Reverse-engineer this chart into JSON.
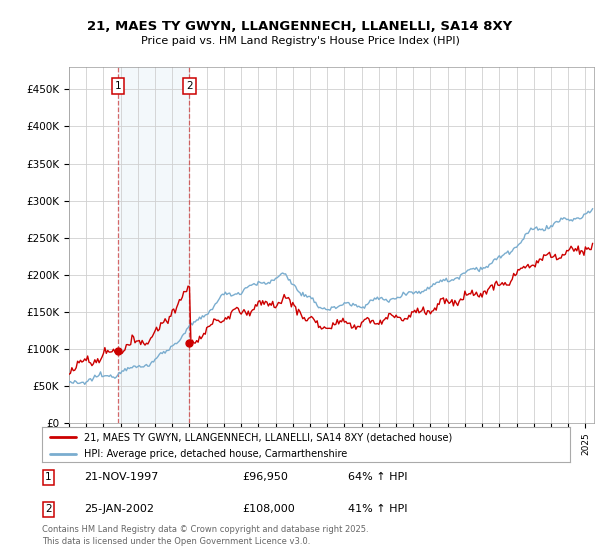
{
  "title": "21, MAES TY GWYN, LLANGENNECH, LLANELLI, SA14 8XY",
  "subtitle": "Price paid vs. HM Land Registry's House Price Index (HPI)",
  "legend_line1": "21, MAES TY GWYN, LLANGENNECH, LLANELLI, SA14 8XY (detached house)",
  "legend_line2": "HPI: Average price, detached house, Carmarthenshire",
  "purchase1_date": "21-NOV-1997",
  "purchase1_price": "£96,950",
  "purchase1_hpi": "64% ↑ HPI",
  "purchase2_date": "25-JAN-2002",
  "purchase2_price": "£108,000",
  "purchase2_hpi": "41% ↑ HPI",
  "footer": "Contains HM Land Registry data © Crown copyright and database right 2025.\nThis data is licensed under the Open Government Licence v3.0.",
  "line_color_red": "#cc0000",
  "line_color_blue": "#7aadcf",
  "background_color": "#ffffff",
  "grid_color": "#d0d0d0",
  "shade_color": "#dae8f5",
  "ylim": [
    0,
    480000
  ],
  "yticks": [
    0,
    50000,
    100000,
    150000,
    200000,
    250000,
    300000,
    350000,
    400000,
    450000
  ],
  "xlim_start": 1995.0,
  "xlim_end": 2025.5
}
